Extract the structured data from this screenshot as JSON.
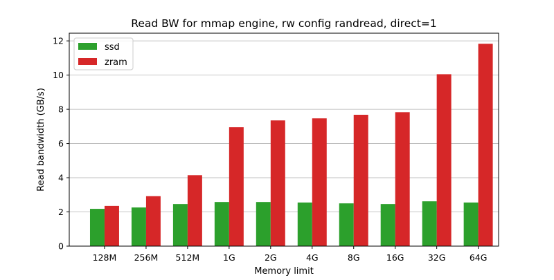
{
  "chart_data": {
    "type": "bar",
    "title": "Read BW for mmap engine, rw config randread, direct=1",
    "xlabel": "Memory limit",
    "ylabel": "Read bandwidth (GB/s)",
    "categories": [
      "128M",
      "256M",
      "512M",
      "1G",
      "2G",
      "4G",
      "8G",
      "16G",
      "32G",
      "64G"
    ],
    "series": [
      {
        "name": "ssd",
        "color": "#2ca02c",
        "values": [
          2.18,
          2.26,
          2.46,
          2.58,
          2.58,
          2.55,
          2.5,
          2.46,
          2.62,
          2.55
        ]
      },
      {
        "name": "zram",
        "color": "#d62728",
        "values": [
          2.35,
          2.92,
          4.15,
          6.95,
          7.35,
          7.47,
          7.68,
          7.83,
          10.05,
          11.83
        ]
      }
    ],
    "ylim": [
      0,
      12.45
    ],
    "yticks": [
      0,
      2,
      4,
      6,
      8,
      10,
      12
    ],
    "grid": "horizontal",
    "legend_position": "top-left"
  }
}
